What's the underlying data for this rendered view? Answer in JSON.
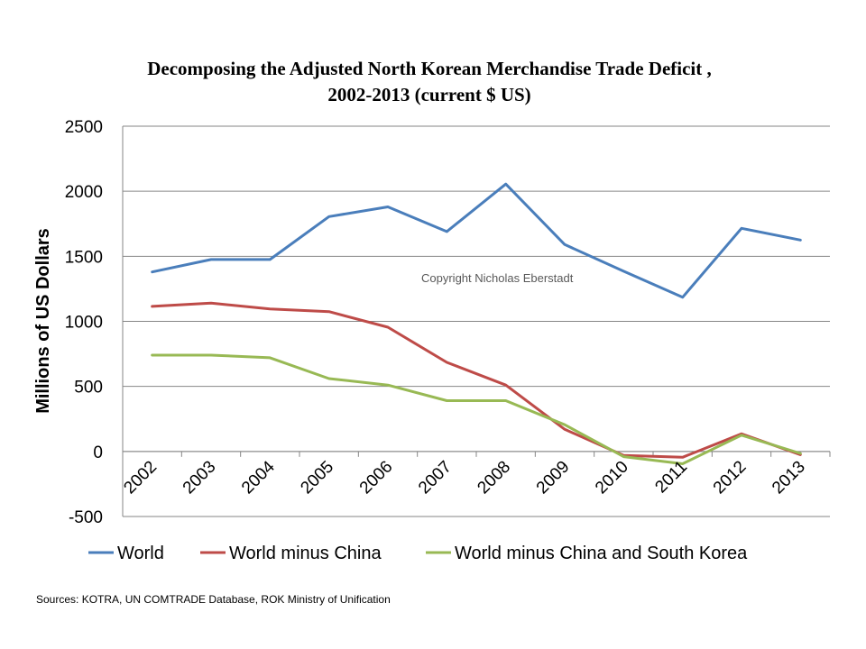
{
  "chart_data": {
    "type": "line",
    "title_line1": "Decomposing the Adjusted North Korean Merchandise Trade Deficit ,",
    "title_line2": "2002-2013 (current $ US)",
    "xlabel": "",
    "ylabel": "Millions of US Dollars",
    "categories": [
      "2002",
      "2003",
      "2004",
      "2005",
      "2006",
      "2007",
      "2008",
      "2009",
      "2010",
      "2011",
      "2012",
      "2013"
    ],
    "ylim": [
      -500,
      2500
    ],
    "yticks": [
      "-500",
      "0",
      "500",
      "1000",
      "1500",
      "2000",
      "2500"
    ],
    "grid": true,
    "legend_position": "bottom",
    "annotation": "Copyright Nicholas Eberstadt",
    "series": [
      {
        "name": "World",
        "color": "#4a7ebb",
        "values": [
          1380,
          1475,
          1475,
          1805,
          1880,
          1690,
          2055,
          1590,
          1385,
          1185,
          1715,
          1625
        ]
      },
      {
        "name": "World minus China",
        "color": "#be4b48",
        "values": [
          1115,
          1140,
          1095,
          1075,
          955,
          685,
          510,
          170,
          -30,
          -45,
          135,
          -25
        ]
      },
      {
        "name": "World minus China and South Korea",
        "color": "#98b954",
        "values": [
          740,
          740,
          720,
          560,
          510,
          390,
          390,
          205,
          -40,
          -95,
          125,
          -15
        ]
      }
    ]
  },
  "footer": {
    "sources": "Sources: KOTRA, UN COMTRADE Database, ROK Ministry of Unification"
  }
}
